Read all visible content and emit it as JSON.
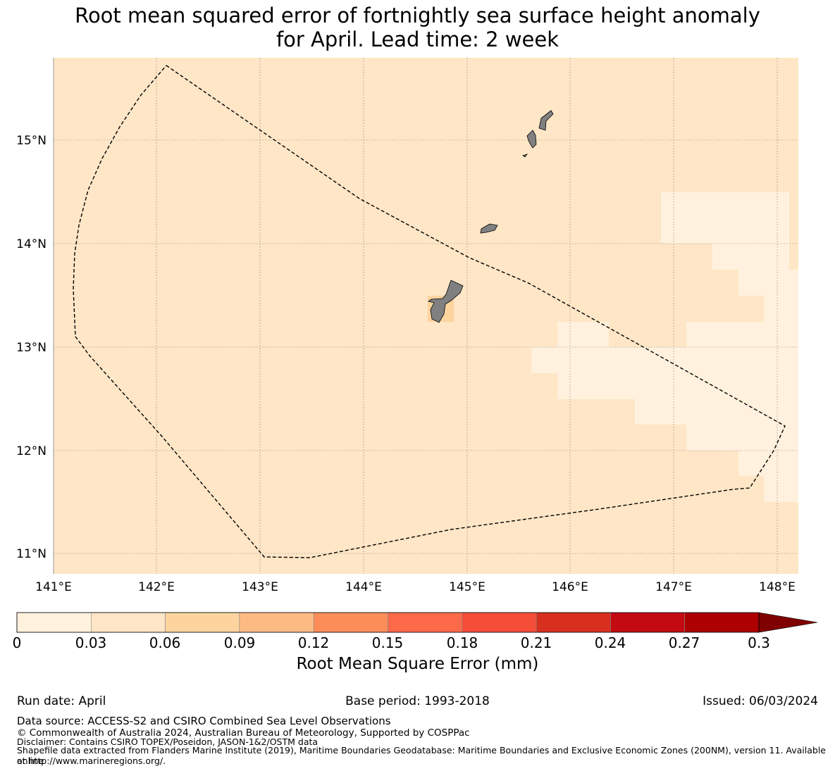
{
  "title_line1": "Root mean squared error of fortnightly sea surface height anomaly",
  "title_line2": "for April. Lead time: 2 week",
  "map": {
    "lon_range": [
      141.0,
      148.2
    ],
    "lat_range": [
      10.8,
      15.8
    ],
    "lon_ticks": [
      "141°E",
      "142°E",
      "143°E",
      "144°E",
      "145°E",
      "146°E",
      "147°E",
      "148°E"
    ],
    "lat_ticks": [
      "15°N",
      "14°N",
      "13°N",
      "12°N",
      "11°N"
    ],
    "colors": {
      "background_field": "#fee6c6",
      "lower_cells": "#fff1dd",
      "higher_cell": "#fdd49e",
      "land": "#808080"
    }
  },
  "colorbar": {
    "title": "Root Mean Square Error (mm)",
    "tick_labels": [
      "0",
      "0.03",
      "0.06",
      "0.09",
      "0.12",
      "0.15",
      "0.18",
      "0.21",
      "0.24",
      "0.27",
      "0.3"
    ],
    "colors": [
      "#fff1dd",
      "#fee6c6",
      "#fdd49e",
      "#fdbb84",
      "#fc8d59",
      "#fc6a4a",
      "#f44d38",
      "#d7301f",
      "#c30a12",
      "#ad0000"
    ],
    "extend_color": "#7f0000"
  },
  "meta": {
    "run_date": "Run date: April",
    "base_period": "Base period: 1993-2018",
    "issued": "Issued: 06/03/2024"
  },
  "footer": {
    "data_source": "Data source: ACCESS-S2 and CSIRO Combined Sea Level Observations",
    "copyright": "© Commonwealth of Australia 2024, Australian Bureau of Meteorology, Supported by COSPPac",
    "disclaimer": "Disclaimer: Contains CSIRO TOPEX/Poseidon, JASON-1&2/OSTM data",
    "shapefile_1": "Shapefile data extracted from Flanders Marine Institute (2019), Maritime Boundaries Geodatabase: Maritime Boundaries and Exclusive Economic Zones (200NM), version 11. Available online",
    "shapefile_2": "at http://www.marineregions.org/."
  }
}
